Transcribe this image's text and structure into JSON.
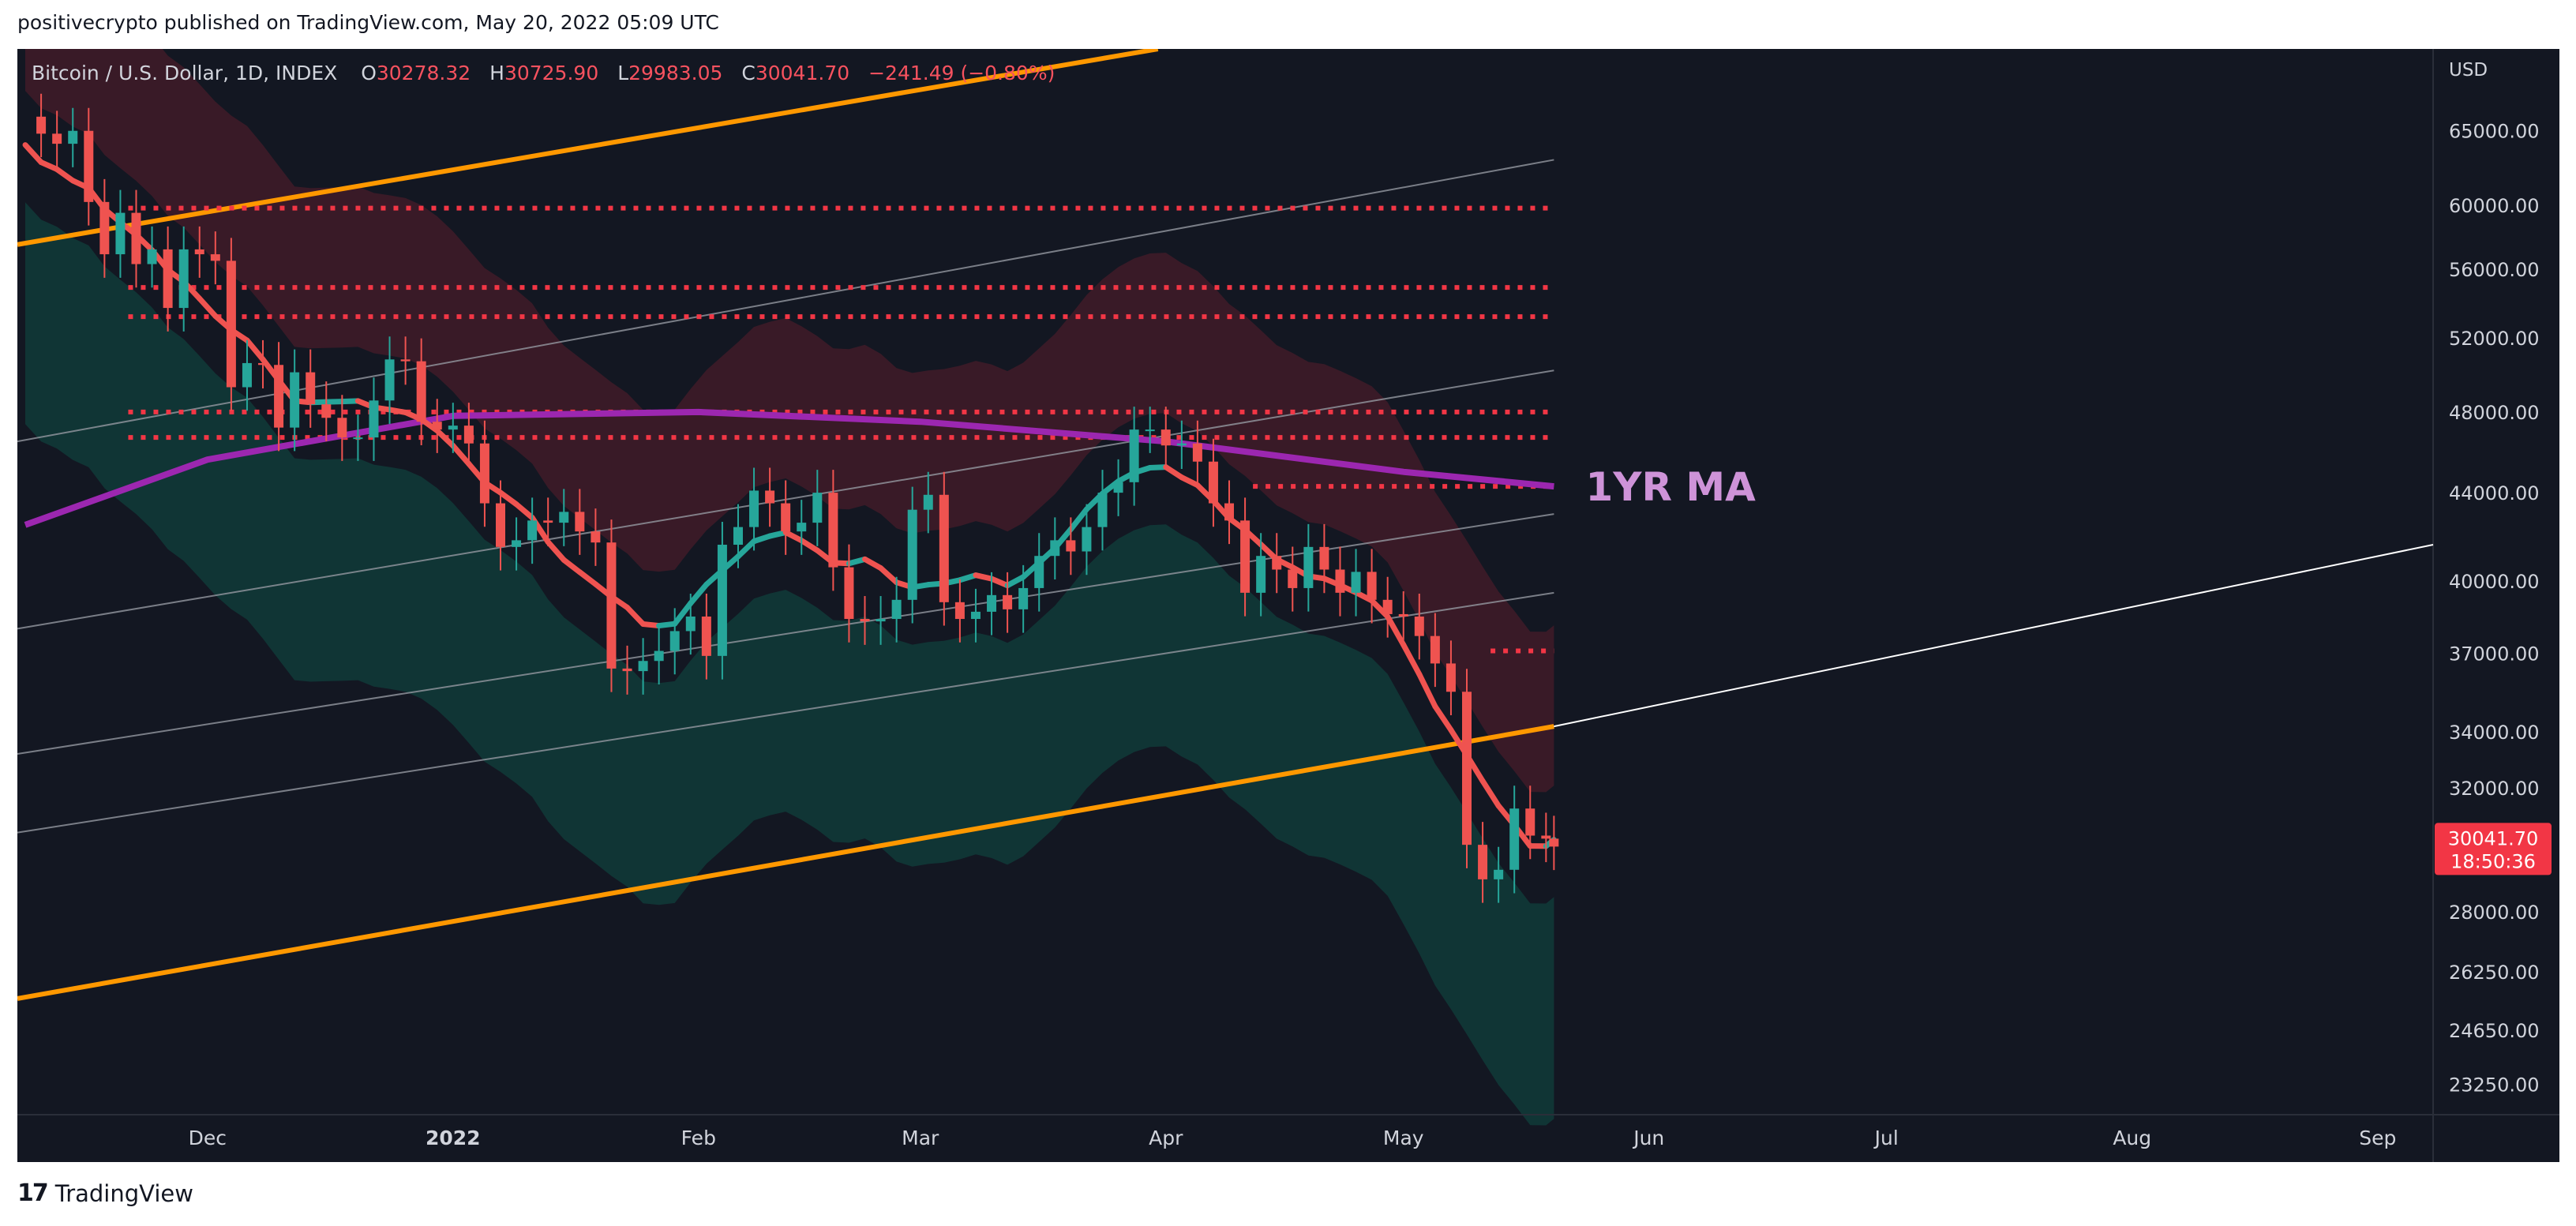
{
  "attribution": "positivecrypto published on TradingView.com, May 20, 2022 05:09 UTC",
  "symbol": {
    "name": "Bitcoin / U.S. Dollar, 1D, INDEX",
    "o_label": "O",
    "o": "30278.32",
    "h_label": "H",
    "h": "30725.90",
    "l_label": "L",
    "l": "29983.05",
    "c_label": "C",
    "c": "30041.70",
    "change": "−241.49 (−0.80%)"
  },
  "currency": "USD",
  "brand": {
    "logo": "17",
    "name": "TradingView"
  },
  "colors": {
    "background": "#131722",
    "bull": "#26a69a",
    "bear": "#ef5350",
    "ma": "#9c27b0",
    "channel": "#ff9800",
    "levels": "#f23645",
    "annotation": "#ce93d8"
  },
  "chart_data": {
    "type": "candlestick",
    "xlim": [
      "2021-11-07",
      "2022-09-08"
    ],
    "ylim": [
      22500,
      71000
    ],
    "yscale": "log",
    "x_ticks": [
      {
        "date": "2021-12-01",
        "label": "Dec"
      },
      {
        "date": "2022-01-01",
        "label": "2022"
      },
      {
        "date": "2022-02-01",
        "label": "Feb"
      },
      {
        "date": "2022-03-01",
        "label": "Mar"
      },
      {
        "date": "2022-04-01",
        "label": "Apr"
      },
      {
        "date": "2022-05-01",
        "label": "May"
      },
      {
        "date": "2022-06-01",
        "label": "Jun"
      },
      {
        "date": "2022-07-01",
        "label": "Jul"
      },
      {
        "date": "2022-08-01",
        "label": "Aug"
      },
      {
        "date": "2022-09-01",
        "label": "Sep"
      }
    ],
    "y_ticks": [
      "65000.00",
      "60000.00",
      "56000.00",
      "52000.00",
      "48000.00",
      "44000.00",
      "40000.00",
      "37000.00",
      "34000.00",
      "32000.00",
      "28000.00",
      "26250.00",
      "24650.00",
      "23250.00"
    ],
    "last_price": {
      "value": "30041.70",
      "countdown": "18:50:36"
    },
    "closes": [
      {
        "d": "2021-11-08",
        "c": 66000
      },
      {
        "d": "2021-11-10",
        "c": 64800
      },
      {
        "d": "2021-11-12",
        "c": 64100
      },
      {
        "d": "2021-11-14",
        "c": 65000
      },
      {
        "d": "2021-11-16",
        "c": 60200
      },
      {
        "d": "2021-11-18",
        "c": 56900
      },
      {
        "d": "2021-11-20",
        "c": 59500
      },
      {
        "d": "2021-11-22",
        "c": 56300
      },
      {
        "d": "2021-11-24",
        "c": 57200
      },
      {
        "d": "2021-11-26",
        "c": 53700
      },
      {
        "d": "2021-11-28",
        "c": 57200
      },
      {
        "d": "2021-11-30",
        "c": 56900
      },
      {
        "d": "2021-12-02",
        "c": 56500
      },
      {
        "d": "2021-12-04",
        "c": 49300
      },
      {
        "d": "2021-12-06",
        "c": 50600
      },
      {
        "d": "2021-12-08",
        "c": 50500
      },
      {
        "d": "2021-12-10",
        "c": 47200
      },
      {
        "d": "2021-12-12",
        "c": 50100
      },
      {
        "d": "2021-12-14",
        "c": 48400
      },
      {
        "d": "2021-12-16",
        "c": 47700
      },
      {
        "d": "2021-12-18",
        "c": 46700
      },
      {
        "d": "2021-12-20",
        "c": 46700
      },
      {
        "d": "2021-12-22",
        "c": 48600
      },
      {
        "d": "2021-12-24",
        "c": 50800
      },
      {
        "d": "2021-12-26",
        "c": 50700
      },
      {
        "d": "2021-12-28",
        "c": 47500
      },
      {
        "d": "2021-12-30",
        "c": 47100
      },
      {
        "d": "2022-01-01",
        "c": 47300
      },
      {
        "d": "2022-01-03",
        "c": 46400
      },
      {
        "d": "2022-01-05",
        "c": 43500
      },
      {
        "d": "2022-01-07",
        "c": 41500
      },
      {
        "d": "2022-01-09",
        "c": 41800
      },
      {
        "d": "2022-01-11",
        "c": 42700
      },
      {
        "d": "2022-01-13",
        "c": 42600
      },
      {
        "d": "2022-01-15",
        "c": 43100
      },
      {
        "d": "2022-01-17",
        "c": 42200
      },
      {
        "d": "2022-01-19",
        "c": 41700
      },
      {
        "d": "2022-01-21",
        "c": 36400
      },
      {
        "d": "2022-01-23",
        "c": 36300
      },
      {
        "d": "2022-01-25",
        "c": 36700
      },
      {
        "d": "2022-01-27",
        "c": 37100
      },
      {
        "d": "2022-01-29",
        "c": 37900
      },
      {
        "d": "2022-01-31",
        "c": 38500
      },
      {
        "d": "2022-02-02",
        "c": 36900
      },
      {
        "d": "2022-02-04",
        "c": 41600
      },
      {
        "d": "2022-02-06",
        "c": 42400
      },
      {
        "d": "2022-02-08",
        "c": 44100
      },
      {
        "d": "2022-02-10",
        "c": 43500
      },
      {
        "d": "2022-02-12",
        "c": 42200
      },
      {
        "d": "2022-02-14",
        "c": 42600
      },
      {
        "d": "2022-02-16",
        "c": 44000
      },
      {
        "d": "2022-02-18",
        "c": 40600
      },
      {
        "d": "2022-02-20",
        "c": 38400
      },
      {
        "d": "2022-02-22",
        "c": 38300
      },
      {
        "d": "2022-02-24",
        "c": 38400
      },
      {
        "d": "2022-02-26",
        "c": 39200
      },
      {
        "d": "2022-02-28",
        "c": 43200
      },
      {
        "d": "2022-03-02",
        "c": 43900
      },
      {
        "d": "2022-03-04",
        "c": 39100
      },
      {
        "d": "2022-03-06",
        "c": 38400
      },
      {
        "d": "2022-03-08",
        "c": 38700
      },
      {
        "d": "2022-03-10",
        "c": 39400
      },
      {
        "d": "2022-03-12",
        "c": 38800
      },
      {
        "d": "2022-03-14",
        "c": 39700
      },
      {
        "d": "2022-03-16",
        "c": 41100
      },
      {
        "d": "2022-03-18",
        "c": 41800
      },
      {
        "d": "2022-03-20",
        "c": 41300
      },
      {
        "d": "2022-03-22",
        "c": 42400
      },
      {
        "d": "2022-03-24",
        "c": 44000
      },
      {
        "d": "2022-03-26",
        "c": 44500
      },
      {
        "d": "2022-03-28",
        "c": 47100
      },
      {
        "d": "2022-03-30",
        "c": 47100
      },
      {
        "d": "2022-04-01",
        "c": 46300
      },
      {
        "d": "2022-04-03",
        "c": 46400
      },
      {
        "d": "2022-04-05",
        "c": 45500
      },
      {
        "d": "2022-04-07",
        "c": 43500
      },
      {
        "d": "2022-04-09",
        "c": 42700
      },
      {
        "d": "2022-04-11",
        "c": 39500
      },
      {
        "d": "2022-04-13",
        "c": 41100
      },
      {
        "d": "2022-04-15",
        "c": 40500
      },
      {
        "d": "2022-04-17",
        "c": 39700
      },
      {
        "d": "2022-04-19",
        "c": 41500
      },
      {
        "d": "2022-04-21",
        "c": 40500
      },
      {
        "d": "2022-04-23",
        "c": 39500
      },
      {
        "d": "2022-04-25",
        "c": 40400
      },
      {
        "d": "2022-04-27",
        "c": 39200
      },
      {
        "d": "2022-04-29",
        "c": 38600
      },
      {
        "d": "2022-05-01",
        "c": 38500
      },
      {
        "d": "2022-05-03",
        "c": 37700
      },
      {
        "d": "2022-05-05",
        "c": 36600
      },
      {
        "d": "2022-05-07",
        "c": 35500
      },
      {
        "d": "2022-05-09",
        "c": 30100
      },
      {
        "d": "2022-05-11",
        "c": 29000
      },
      {
        "d": "2022-05-13",
        "c": 29300
      },
      {
        "d": "2022-05-15",
        "c": 31300
      },
      {
        "d": "2022-05-17",
        "c": 30400
      },
      {
        "d": "2022-05-19",
        "c": 30300
      },
      {
        "d": "2022-05-20",
        "c": 30042
      }
    ],
    "indicators": {
      "ma_1yr": [
        {
          "d": "2021-11-08",
          "v": 42500
        },
        {
          "d": "2021-12-01",
          "v": 45600
        },
        {
          "d": "2022-01-01",
          "v": 47800
        },
        {
          "d": "2022-02-01",
          "v": 48000
        },
        {
          "d": "2022-03-01",
          "v": 47500
        },
        {
          "d": "2022-04-01",
          "v": 46500
        },
        {
          "d": "2022-05-01",
          "v": 45000
        },
        {
          "d": "2022-05-20",
          "v": 44300
        }
      ]
    },
    "channel_lines": [
      {
        "style": "orange",
        "points": [
          {
            "d": "2021-11-07",
            "v": 57500
          },
          {
            "d": "2022-03-31",
            "v": 71000
          }
        ]
      },
      {
        "style": "orange",
        "points": [
          {
            "d": "2021-11-07",
            "v": 25500
          },
          {
            "d": "2022-05-20",
            "v": 34200
          }
        ]
      },
      {
        "style": "grey",
        "points": [
          {
            "d": "2021-11-07",
            "v": 46500
          },
          {
            "d": "2022-05-20",
            "v": 63000
          }
        ]
      },
      {
        "style": "grey",
        "points": [
          {
            "d": "2021-11-07",
            "v": 38000
          },
          {
            "d": "2022-05-20",
            "v": 50200
          }
        ]
      },
      {
        "style": "grey",
        "points": [
          {
            "d": "2021-11-07",
            "v": 33200
          },
          {
            "d": "2022-05-20",
            "v": 43000
          }
        ]
      },
      {
        "style": "grey",
        "points": [
          {
            "d": "2021-11-07",
            "v": 30500
          },
          {
            "d": "2022-05-20",
            "v": 39500
          }
        ]
      },
      {
        "style": "white",
        "points": [
          {
            "d": "2022-05-20",
            "v": 34200
          },
          {
            "d": "2022-09-08",
            "v": 41600
          }
        ]
      }
    ],
    "levels": [
      59800,
      54900,
      53200,
      48000,
      46700,
      44300,
      37100
    ],
    "annotations": [
      {
        "text": "1YR MA",
        "d": "2022-05-23",
        "v": 44300
      }
    ]
  }
}
